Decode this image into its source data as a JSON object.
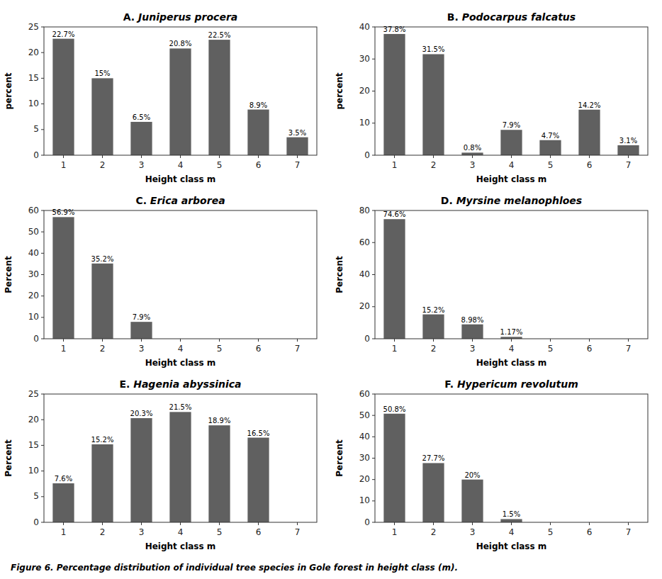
{
  "chart_data": [
    {
      "type": "bar",
      "title": "A. Juniperus procera",
      "xlabel": "Height class m",
      "ylabel": "percent",
      "categories": [
        1,
        2,
        3,
        4,
        5,
        6,
        7
      ],
      "values": [
        22.7,
        15.0,
        6.5,
        20.8,
        22.5,
        8.9,
        3.5
      ],
      "value_labels": [
        "22.7%",
        "15%",
        "6.5%",
        "20.8%",
        "22.5%",
        "8.9%",
        "3.5%"
      ],
      "color": "#606060",
      "ylim": [
        0,
        25
      ],
      "yticks": [
        0,
        5,
        10,
        15,
        20,
        25
      ],
      "grid": false,
      "data_labels": true
    },
    {
      "type": "bar",
      "title": "B. Podocarpus falcatus",
      "xlabel": "Height class m",
      "ylabel": "percent",
      "categories": [
        1,
        2,
        3,
        4,
        5,
        6,
        7
      ],
      "values": [
        37.8,
        31.5,
        0.8,
        7.9,
        4.7,
        14.2,
        3.1
      ],
      "value_labels": [
        "37.8%",
        "31.5%",
        "0.8%",
        "7.9%",
        "4.7%",
        "14.2%",
        "3.1%"
      ],
      "color": "#606060",
      "ylim": [
        0,
        40
      ],
      "yticks": [
        0,
        10,
        20,
        30,
        40
      ],
      "grid": false,
      "data_labels": true
    },
    {
      "type": "bar",
      "title": "C. Erica arborea",
      "xlabel": "Height class m",
      "ylabel": "Percent",
      "categories": [
        1,
        2,
        3,
        4,
        5,
        6,
        7
      ],
      "values": [
        56.9,
        35.2,
        7.9,
        0.0,
        0.0,
        0.0,
        0.0
      ],
      "value_labels": [
        "56.9%",
        "35.2%",
        "7.9%",
        null,
        null,
        null,
        null
      ],
      "color": "#606060",
      "ylim": [
        0,
        60
      ],
      "yticks": [
        0,
        10,
        20,
        30,
        40,
        50,
        60
      ],
      "grid": false,
      "data_labels": true
    },
    {
      "type": "bar",
      "title": "D. Myrsine melanophloes",
      "xlabel": "Height class m",
      "ylabel": "Percent",
      "categories": [
        1,
        2,
        3,
        4,
        5,
        6,
        7
      ],
      "values": [
        74.6,
        15.2,
        8.98,
        1.17,
        0.0,
        0.0,
        0.0
      ],
      "value_labels": [
        "74.6%",
        "15.2%",
        "8.98%",
        "1.17%",
        null,
        null,
        null
      ],
      "color": "#606060",
      "ylim": [
        0,
        80
      ],
      "yticks": [
        0,
        20,
        40,
        60,
        80
      ],
      "grid": false,
      "data_labels": true
    },
    {
      "type": "bar",
      "title": "E. Hagenia abyssinica",
      "xlabel": "Height class m",
      "ylabel": "Percent",
      "categories": [
        1,
        2,
        3,
        4,
        5,
        6,
        7
      ],
      "values": [
        7.6,
        15.2,
        20.3,
        21.5,
        18.9,
        16.5,
        0.0
      ],
      "value_labels": [
        "7.6%",
        "15.2%",
        "20.3%",
        "21.5%",
        "18.9%",
        "16.5%",
        null
      ],
      "color": "#606060",
      "ylim": [
        0,
        25
      ],
      "yticks": [
        0,
        5,
        10,
        15,
        20,
        25
      ],
      "grid": false,
      "data_labels": true
    },
    {
      "type": "bar",
      "title": "F. Hypericum revolutum",
      "xlabel": "Height class m",
      "ylabel": "Percent",
      "categories": [
        1,
        2,
        3,
        4,
        5,
        6,
        7
      ],
      "values": [
        50.8,
        27.7,
        20.0,
        1.5,
        0.0,
        0.0,
        0.0
      ],
      "value_labels": [
        "50.8%",
        "27.7%",
        "20%",
        "1.5%",
        null,
        null,
        null
      ],
      "color": "#606060",
      "ylim": [
        0,
        60
      ],
      "yticks": [
        0,
        10,
        20,
        30,
        40,
        50,
        60
      ],
      "grid": false,
      "data_labels": true
    }
  ],
  "caption": "Figure 6. Percentage distribution of individual tree species in Gole forest in height class (m)."
}
